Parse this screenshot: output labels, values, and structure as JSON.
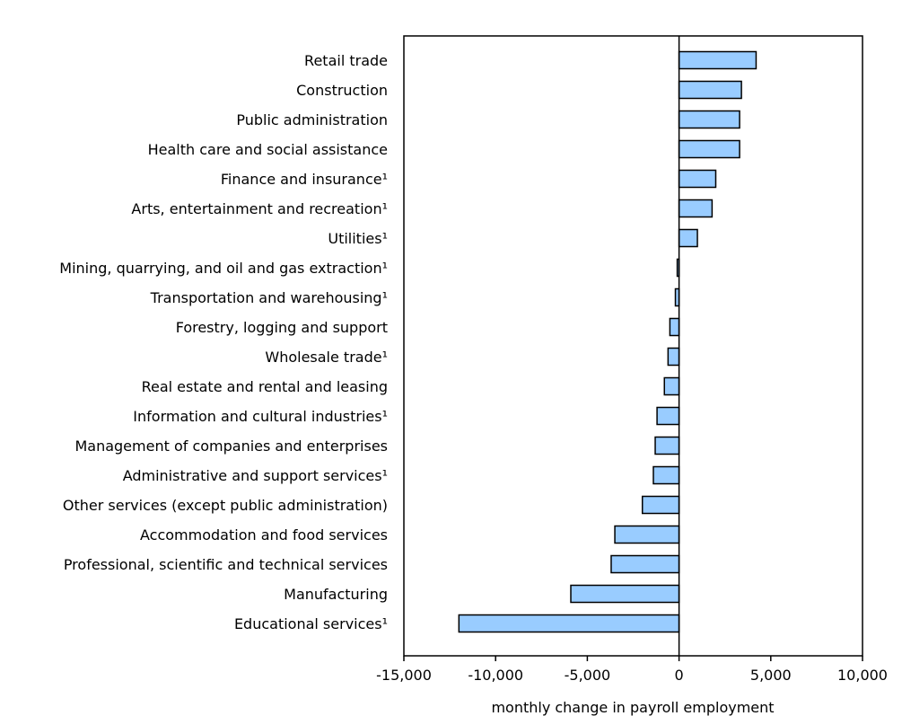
{
  "chart_data": {
    "type": "bar",
    "orientation": "horizontal",
    "title": "",
    "xlabel": "monthly change in payroll employment",
    "ylabel": "",
    "xlim": [
      -15000,
      10000
    ],
    "xticks": [
      -15000,
      -10000,
      -5000,
      0,
      5000,
      10000
    ],
    "xtick_labels": [
      "-15,000",
      "-10,000",
      "-5,000",
      "0",
      "5,000",
      "10,000"
    ],
    "grid": false,
    "bar_color": "#99ccff",
    "categories": [
      "Retail trade",
      "Construction",
      "Public administration",
      "Health care and social assistance",
      "Finance and insurance¹",
      "Arts, entertainment and recreation¹",
      "Utilities¹",
      "Mining, quarrying, and oil and gas extraction¹",
      "Transportation and warehousing¹",
      "Forestry, logging and support",
      "Wholesale trade¹",
      "Real estate and rental and leasing",
      "Information and cultural industries¹",
      "Management of companies and enterprises",
      "Administrative and support services¹",
      "Other services (except public administration)",
      "Accommodation and food services",
      "Professional, scientific and technical services",
      "Manufacturing",
      "Educational services¹"
    ],
    "values": [
      4200,
      3400,
      3300,
      3300,
      2000,
      1800,
      1000,
      -100,
      -200,
      -500,
      -600,
      -800,
      -1200,
      -1300,
      -1400,
      -2000,
      -3500,
      -3700,
      -5900,
      -12000
    ]
  }
}
